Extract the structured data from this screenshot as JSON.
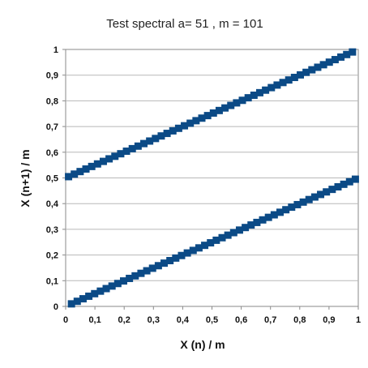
{
  "chart_data": {
    "type": "scatter",
    "title": "Test spectral a= 51 , m = 101",
    "xlabel": "X (n) / m",
    "ylabel": "X (n+1) / m",
    "xlim": [
      0,
      1
    ],
    "ylim": [
      0,
      1
    ],
    "x_ticks": [
      "0",
      "0,1",
      "0,2",
      "0,3",
      "0,4",
      "0,5",
      "0,6",
      "0,7",
      "0,8",
      "0,9",
      "1"
    ],
    "y_ticks": [
      "0",
      "0,1",
      "0,2",
      "0,3",
      "0,4",
      "0,5",
      "0,6",
      "0,7",
      "0,8",
      "0,9",
      "1"
    ],
    "grid": "horizontal",
    "legend": "none",
    "marker": "square",
    "color": "#0b4a86",
    "a": 51,
    "m": 101
  }
}
